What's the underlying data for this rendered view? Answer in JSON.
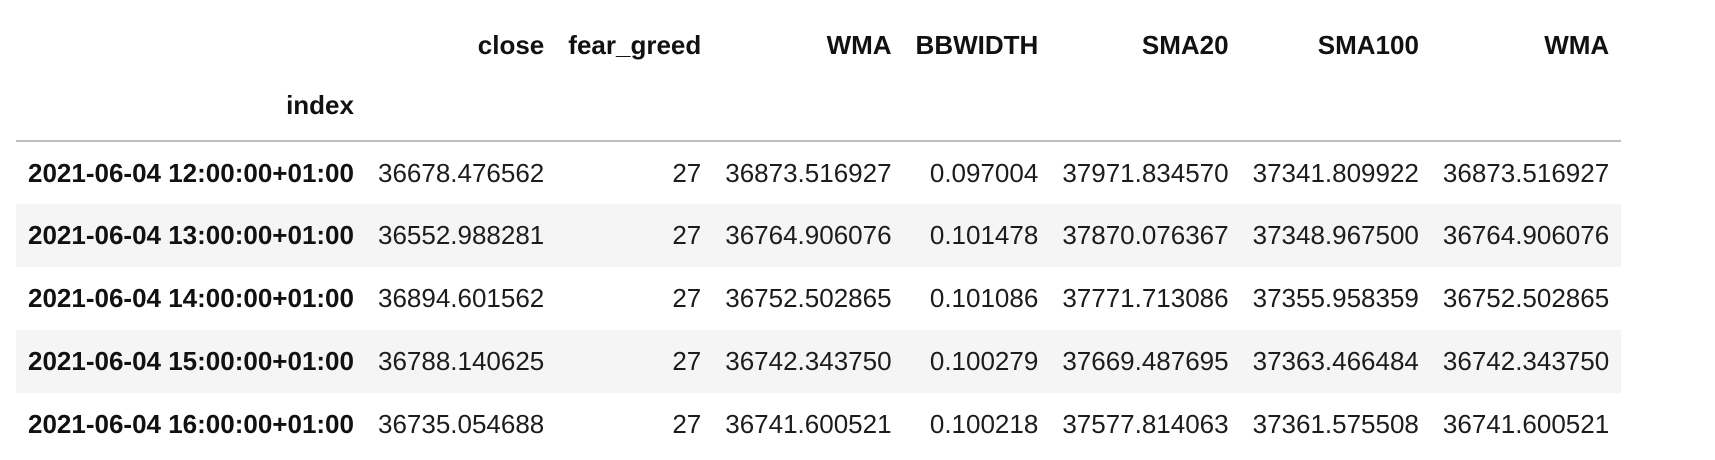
{
  "table": {
    "columns": [
      "close",
      "fear_greed",
      "WMA",
      "BBWIDTH",
      "SMA20",
      "SMA100",
      "WMA"
    ],
    "index_name": "index",
    "rows": [
      {
        "index": "2021-06-04 12:00:00+01:00",
        "values": [
          "36678.476562",
          "27",
          "36873.516927",
          "0.097004",
          "37971.834570",
          "37341.809922",
          "36873.516927"
        ]
      },
      {
        "index": "2021-06-04 13:00:00+01:00",
        "values": [
          "36552.988281",
          "27",
          "36764.906076",
          "0.101478",
          "37870.076367",
          "37348.967500",
          "36764.906076"
        ]
      },
      {
        "index": "2021-06-04 14:00:00+01:00",
        "values": [
          "36894.601562",
          "27",
          "36752.502865",
          "0.101086",
          "37771.713086",
          "37355.958359",
          "36752.502865"
        ]
      },
      {
        "index": "2021-06-04 15:00:00+01:00",
        "values": [
          "36788.140625",
          "27",
          "36742.343750",
          "0.100279",
          "37669.487695",
          "37363.466484",
          "36742.343750"
        ]
      },
      {
        "index": "2021-06-04 16:00:00+01:00",
        "values": [
          "36735.054688",
          "27",
          "36741.600521",
          "0.100218",
          "37577.814063",
          "37361.575508",
          "36741.600521"
        ]
      }
    ]
  },
  "colors": {
    "stripe": "#f5f5f5",
    "header_rule": "#bdbdbd",
    "text": "#111111"
  }
}
